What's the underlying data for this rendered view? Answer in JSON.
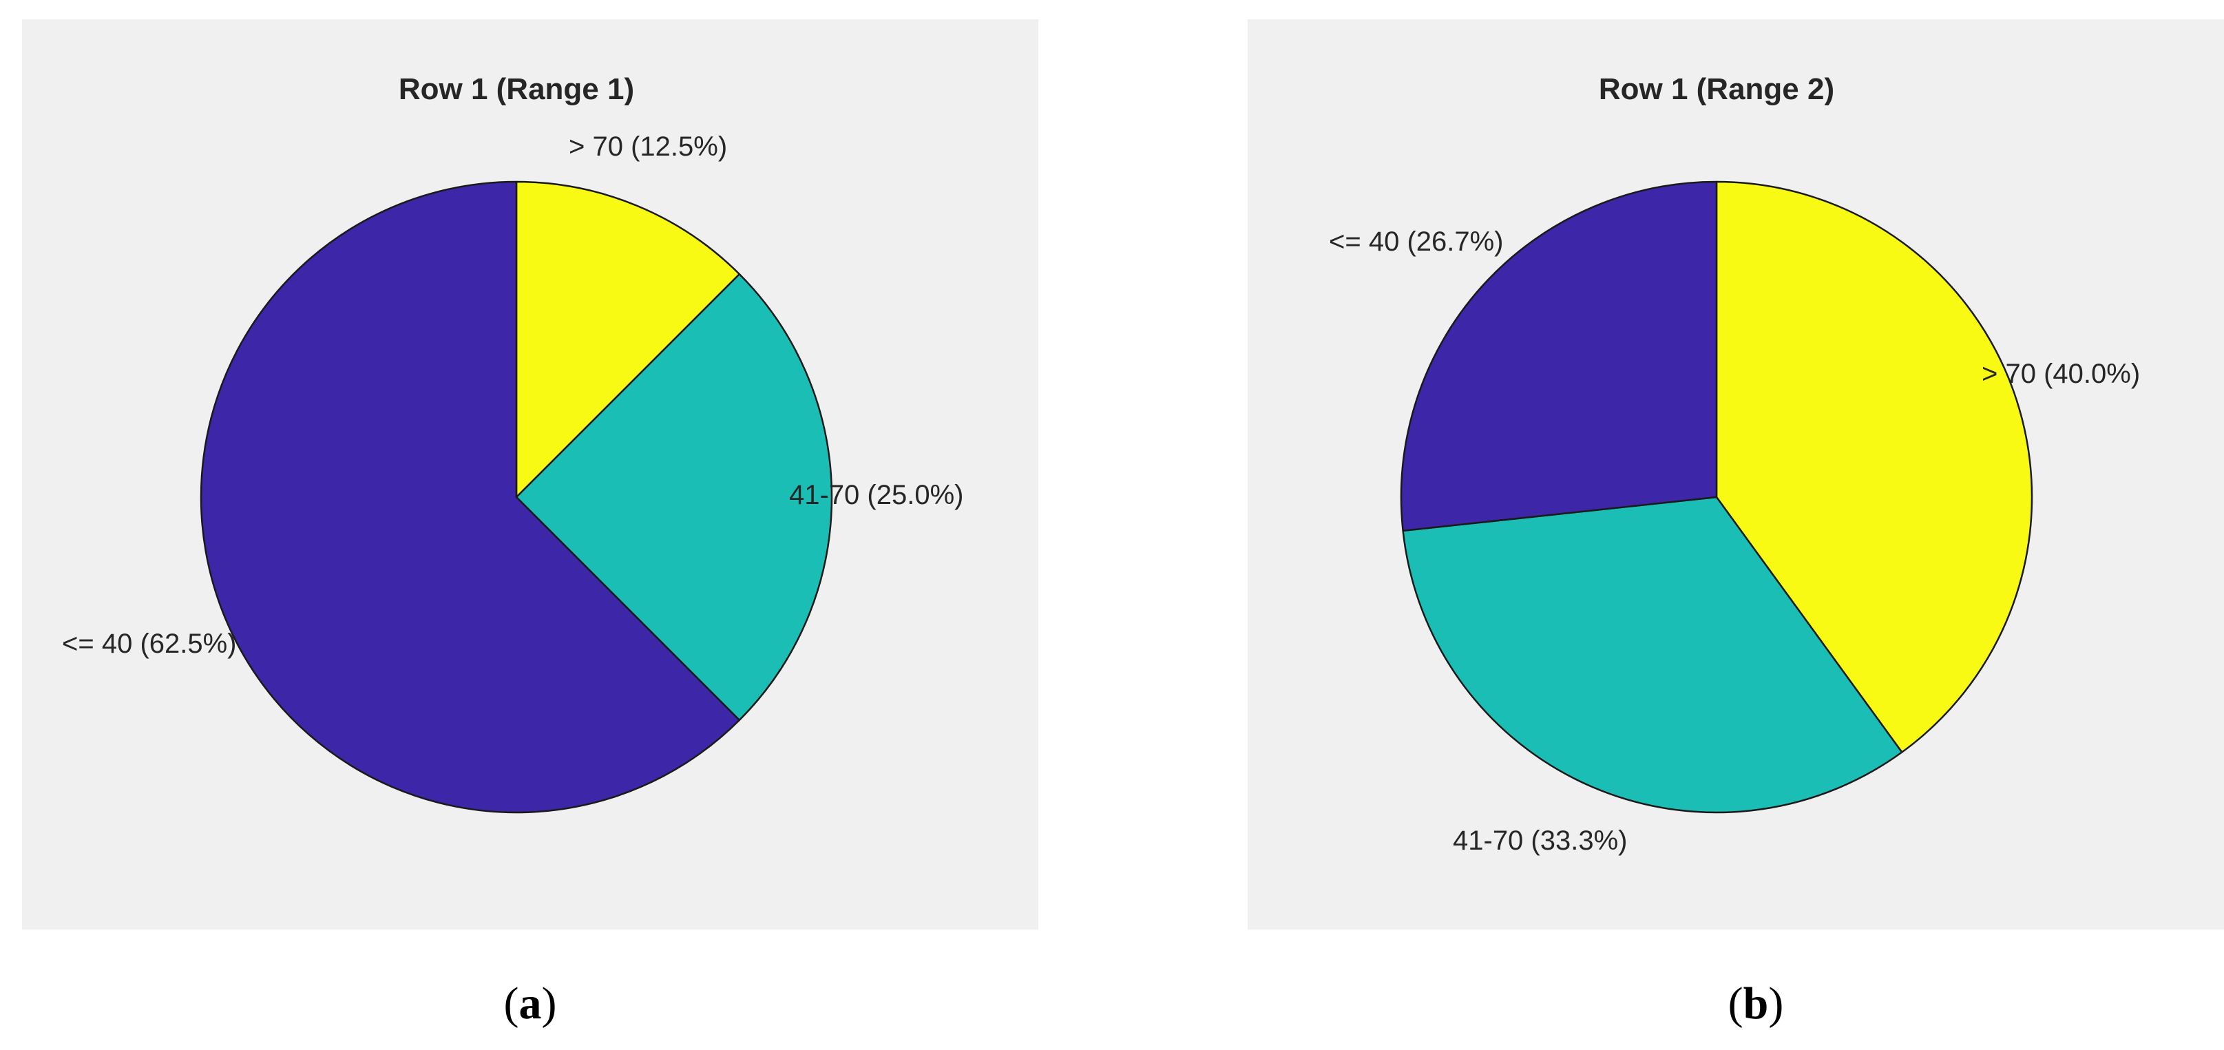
{
  "chart_data": [
    {
      "type": "pie",
      "title": "Row 1 (Range 1)",
      "panel_label": "a",
      "slices": [
        {
          "label": "> 70 (12.5%)",
          "category": "> 70",
          "value": 12.5,
          "color": "#f9fa14"
        },
        {
          "label": "41-70 (25.0%)",
          "category": "41-70",
          "value": 25.0,
          "color": "#1abeb4"
        },
        {
          "label": "<= 40 (62.5%)",
          "category": "<= 40",
          "value": 62.5,
          "color": "#3d26a8"
        }
      ]
    },
    {
      "type": "pie",
      "title": "Row 1 (Range 2)",
      "panel_label": "b",
      "slices": [
        {
          "label": "> 70 (40.0%)",
          "category": "> 70",
          "value": 40.0,
          "color": "#f9fa14"
        },
        {
          "label": "41-70 (33.3%)",
          "category": "41-70",
          "value": 33.3,
          "color": "#1abeb4"
        },
        {
          "label": "<= 40 (26.7%)",
          "category": "<= 40",
          "value": 26.7,
          "color": "#3d26a8"
        }
      ]
    }
  ]
}
